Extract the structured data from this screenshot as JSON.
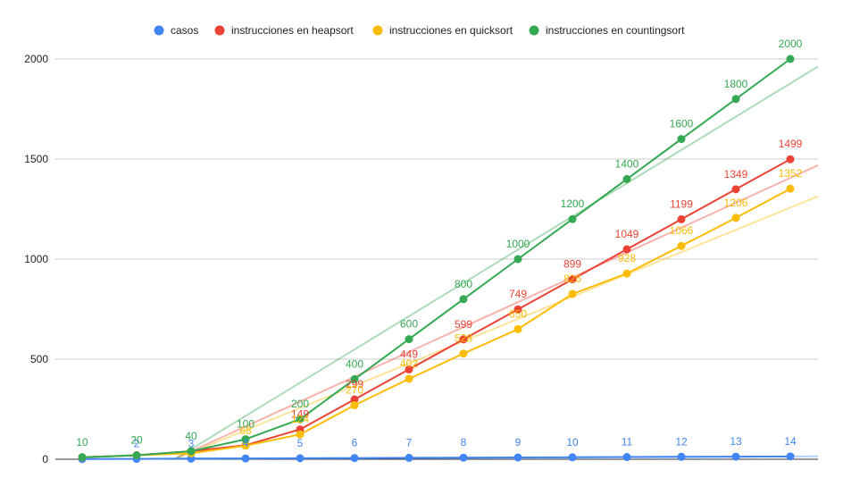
{
  "chart_data": {
    "type": "line",
    "x": [
      1,
      2,
      3,
      4,
      5,
      6,
      7,
      8,
      9,
      10,
      11,
      12,
      13,
      14
    ],
    "series": [
      {
        "name": "casos",
        "color": "#4285f4",
        "values": [
          1,
          2,
          3,
          4,
          5,
          6,
          7,
          8,
          9,
          10,
          11,
          12,
          13,
          14
        ],
        "labels": [
          "",
          "2",
          "3",
          "4",
          "5",
          "6",
          "7",
          "8",
          "9",
          "10",
          "11",
          "12",
          "13",
          "14"
        ],
        "trendline": true
      },
      {
        "name": "instrucciones en heapsort",
        "color": "#ea4335",
        "values": [
          10,
          20,
          40,
          70,
          149,
          299,
          449,
          599,
          749,
          899,
          1049,
          1199,
          1349,
          1499
        ],
        "labels": [
          "",
          "",
          "",
          "",
          "149",
          "299",
          "449",
          "599",
          "749",
          "899",
          "1049",
          "1199",
          "1349",
          "1499"
        ],
        "trendline": true
      },
      {
        "name": "instrucciones en quicksort",
        "color": "#fbbc04",
        "values": [
          10,
          20,
          30,
          68,
          124,
          270,
          402,
          528,
          650,
          826,
          928,
          1066,
          1206,
          1352
        ],
        "labels": [
          "",
          "",
          "",
          "68",
          "124",
          "270",
          "402",
          "528",
          "650",
          "826",
          "928",
          "1066",
          "1206",
          "1352"
        ],
        "trendline": true
      },
      {
        "name": "instrucciones en countingsort",
        "color": "#34a853",
        "values": [
          10,
          20,
          40,
          100,
          200,
          400,
          600,
          800,
          1000,
          1200,
          1400,
          1600,
          1800,
          2000
        ],
        "labels": [
          "10",
          "20",
          "40",
          "100",
          "200",
          "400",
          "600",
          "800",
          "1000",
          "1200",
          "1400",
          "1600",
          "1800",
          "2000"
        ],
        "trendline": true
      }
    ],
    "y_ticks": [
      "0",
      "500",
      "1000",
      "1500",
      "2000"
    ],
    "ylim": [
      0,
      2000
    ],
    "grid": true,
    "legend_position": "top"
  }
}
